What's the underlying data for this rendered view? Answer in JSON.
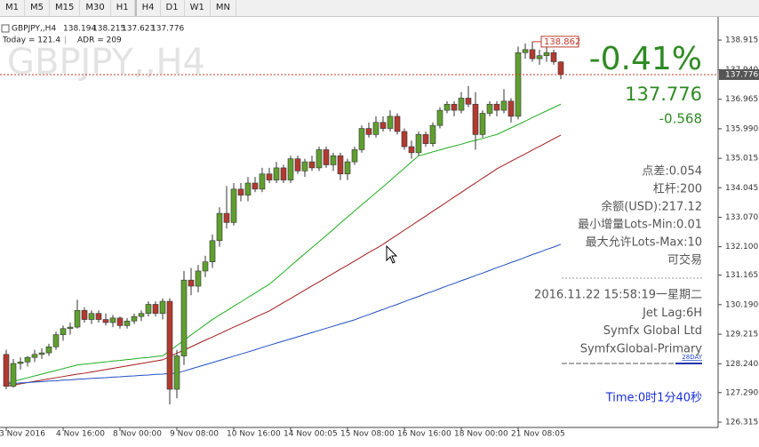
{
  "toolbar": {
    "buttons": [
      "M1",
      "M5",
      "M15",
      "M30",
      "H1",
      "H4",
      "D1",
      "W1",
      "MN"
    ]
  },
  "chart_data": {
    "type": "candlestick",
    "symbol": "GBPJPY,,H4",
    "today": "Today = 121.4",
    "adr": "ADR = 209",
    "up_color": "#5f9f2f",
    "down_color": "#b23a30",
    "ylim": [
      126.17,
      139.65
    ],
    "yticks": [
      138.915,
      {
        "value": 137.94,
        "label": "137.940"
      },
      136.965,
      {
        "value": 135.99,
        "label": "135.990"
      },
      135.015,
      134.045,
      {
        "value": 133.07,
        "label": "133.070"
      },
      {
        "value": 132.1,
        "label": "132.100"
      },
      131.165,
      {
        "value": 130.19,
        "label": "130.190"
      },
      129.215,
      {
        "value": 128.24,
        "label": "128.240"
      },
      {
        "value": 127.29,
        "label": "127.290"
      },
      126.315
    ],
    "categories": [
      "3 Nov 2016",
      null,
      null,
      null,
      null,
      null,
      null,
      null,
      "4 Nov 16:00",
      null,
      null,
      null,
      null,
      null,
      null,
      null,
      "8 Nov 00:00",
      null,
      null,
      null,
      null,
      null,
      null,
      null,
      "9 Nov 08:00",
      null,
      null,
      null,
      null,
      null,
      null,
      null,
      "10 Nov 16:00",
      null,
      null,
      null,
      null,
      null,
      null,
      null,
      "14 Nov 00:05",
      null,
      null,
      null,
      null,
      null,
      null,
      null,
      "15 Nov 08:00",
      null,
      null,
      null,
      null,
      null,
      null,
      null,
      "16 Nov 16:00",
      null,
      null,
      null,
      null,
      null,
      null,
      null,
      "18 Nov 00:00",
      null,
      null,
      null,
      null,
      null,
      null,
      null,
      "21 Nov 08:05",
      null,
      null,
      null,
      null,
      null,
      null
    ],
    "ohlc": [
      [
        128.55,
        128.7,
        127.4,
        127.5
      ],
      [
        127.5,
        128.4,
        127.45,
        128.25
      ],
      [
        128.25,
        128.45,
        128.05,
        128.3
      ],
      [
        128.3,
        128.5,
        128.15,
        128.45
      ],
      [
        128.45,
        128.7,
        128.3,
        128.55
      ],
      [
        128.55,
        128.75,
        128.4,
        128.6
      ],
      [
        128.6,
        128.9,
        128.5,
        128.8
      ],
      [
        128.8,
        129.3,
        128.7,
        129.2
      ],
      [
        129.2,
        129.5,
        129.0,
        129.4
      ],
      [
        129.4,
        129.6,
        129.2,
        129.45
      ],
      [
        129.45,
        130.35,
        129.4,
        130.0
      ],
      [
        130.0,
        130.1,
        129.6,
        129.7
      ],
      [
        129.7,
        130.0,
        129.55,
        129.9
      ],
      [
        129.9,
        130.0,
        129.6,
        129.7
      ],
      [
        129.7,
        129.9,
        129.5,
        129.6
      ],
      [
        129.6,
        129.85,
        129.45,
        129.75
      ],
      [
        129.75,
        129.8,
        129.4,
        129.5
      ],
      [
        129.5,
        129.75,
        129.4,
        129.65
      ],
      [
        129.65,
        129.9,
        129.55,
        129.8
      ],
      [
        129.8,
        130.0,
        129.65,
        129.9
      ],
      [
        129.9,
        130.3,
        129.8,
        130.2
      ],
      [
        130.2,
        130.3,
        129.8,
        129.9
      ],
      [
        129.9,
        130.4,
        129.7,
        130.3
      ],
      [
        130.3,
        130.4,
        126.9,
        127.4
      ],
      [
        127.4,
        128.7,
        127.1,
        128.5
      ],
      [
        128.5,
        131.3,
        128.2,
        131.0
      ],
      [
        131.0,
        131.4,
        130.5,
        130.8
      ],
      [
        130.8,
        131.5,
        130.6,
        131.3
      ],
      [
        131.3,
        131.8,
        131.1,
        131.6
      ],
      [
        131.6,
        132.5,
        131.4,
        132.3
      ],
      [
        132.3,
        133.4,
        132.1,
        133.2
      ],
      [
        133.2,
        134.1,
        132.7,
        132.9
      ],
      [
        132.9,
        134.2,
        132.8,
        134.0
      ],
      [
        134.0,
        134.2,
        133.6,
        133.8
      ],
      [
        133.8,
        134.4,
        133.6,
        134.2
      ],
      [
        134.2,
        134.4,
        133.9,
        134.0
      ],
      [
        134.0,
        134.7,
        133.9,
        134.5
      ],
      [
        134.5,
        134.7,
        134.2,
        134.3
      ],
      [
        134.3,
        134.9,
        134.2,
        134.7
      ],
      [
        134.7,
        134.8,
        134.2,
        134.3
      ],
      [
        134.3,
        135.1,
        134.2,
        135.0
      ],
      [
        135.0,
        135.1,
        134.5,
        134.6
      ],
      [
        134.6,
        135.0,
        134.4,
        134.9
      ],
      [
        134.9,
        135.1,
        134.6,
        134.7
      ],
      [
        134.7,
        135.4,
        134.6,
        135.3
      ],
      [
        135.3,
        135.4,
        134.7,
        134.8
      ],
      [
        134.8,
        135.2,
        134.6,
        135.1
      ],
      [
        135.1,
        135.2,
        134.3,
        134.5
      ],
      [
        134.5,
        135.0,
        134.3,
        134.9
      ],
      [
        134.9,
        135.4,
        134.8,
        135.3
      ],
      [
        135.3,
        136.1,
        135.2,
        136.0
      ],
      [
        136.0,
        136.2,
        135.7,
        135.8
      ],
      [
        135.8,
        136.4,
        135.7,
        136.2
      ],
      [
        136.2,
        136.4,
        135.9,
        136.0
      ],
      [
        136.0,
        136.6,
        135.9,
        136.4
      ],
      [
        136.4,
        136.5,
        135.8,
        135.9
      ],
      [
        135.9,
        136.0,
        135.3,
        135.4
      ],
      [
        135.4,
        135.6,
        135.0,
        135.2
      ],
      [
        135.2,
        135.9,
        135.1,
        135.8
      ],
      [
        135.8,
        135.9,
        135.4,
        135.5
      ],
      [
        135.5,
        136.2,
        135.4,
        136.1
      ],
      [
        136.1,
        136.7,
        136.0,
        136.6
      ],
      [
        136.6,
        136.9,
        136.5,
        136.8
      ],
      [
        136.8,
        136.9,
        136.4,
        136.6
      ],
      [
        136.6,
        137.2,
        136.5,
        137.0
      ],
      [
        137.0,
        137.4,
        136.7,
        136.8
      ],
      [
        136.8,
        137.2,
        135.3,
        135.8
      ],
      [
        135.8,
        136.6,
        135.7,
        136.5
      ],
      [
        136.5,
        136.9,
        136.4,
        136.8
      ],
      [
        136.8,
        136.9,
        136.4,
        136.6
      ],
      [
        136.6,
        137.3,
        136.5,
        136.9
      ],
      [
        136.9,
        137.0,
        136.2,
        136.4
      ],
      [
        136.4,
        138.7,
        136.3,
        138.5
      ],
      [
        138.5,
        138.8,
        138.3,
        138.6
      ],
      [
        138.6,
        138.862,
        138.2,
        138.3
      ],
      [
        138.3,
        138.6,
        138.1,
        138.4
      ],
      [
        138.4,
        138.7,
        138.2,
        138.5
      ],
      [
        138.5,
        138.6,
        138.1,
        138.2
      ],
      [
        138.194,
        138.215,
        137.623,
        137.776
      ]
    ],
    "series": [
      {
        "color": "#1fae1f",
        "values": [
          127.6,
          127.66,
          127.72,
          127.78,
          127.84,
          127.9,
          127.96,
          128.02,
          128.08,
          128.14,
          128.2,
          128.23,
          128.25,
          128.28,
          128.3,
          128.33,
          128.35,
          128.38,
          128.4,
          128.43,
          128.45,
          128.48,
          128.5,
          128.67,
          128.84,
          129.01,
          129.19,
          129.36,
          129.53,
          129.7,
          129.85,
          129.99,
          130.14,
          130.28,
          130.43,
          130.57,
          130.72,
          130.86,
          131.06,
          131.26,
          131.47,
          131.67,
          131.87,
          132.07,
          132.27,
          132.47,
          132.67,
          132.88,
          133.08,
          133.28,
          133.48,
          133.68,
          133.88,
          134.08,
          134.28,
          134.49,
          134.69,
          134.9,
          135.1,
          135.16,
          135.23,
          135.29,
          135.36,
          135.42,
          135.48,
          135.55,
          135.61,
          135.67,
          135.74,
          135.8,
          135.91,
          136.02,
          136.13,
          136.24,
          136.36,
          136.47,
          136.58,
          136.69,
          136.8
        ]
      },
      {
        "color": "#a31b1b",
        "values": [
          127.5,
          127.54,
          127.58,
          127.62,
          127.66,
          127.7,
          127.74,
          127.78,
          127.82,
          127.86,
          127.9,
          127.93,
          127.97,
          128.01,
          128.05,
          128.09,
          128.13,
          128.17,
          128.21,
          128.25,
          128.29,
          128.33,
          128.37,
          128.48,
          128.59,
          128.69,
          128.8,
          128.91,
          129.02,
          129.12,
          129.23,
          129.34,
          129.45,
          129.55,
          129.66,
          129.77,
          129.88,
          129.98,
          130.12,
          130.26,
          130.39,
          130.53,
          130.67,
          130.81,
          130.94,
          131.08,
          131.22,
          131.36,
          131.49,
          131.63,
          131.77,
          131.91,
          132.04,
          132.18,
          132.34,
          132.49,
          132.65,
          132.8,
          132.96,
          133.11,
          133.27,
          133.42,
          133.58,
          133.74,
          133.89,
          134.05,
          134.2,
          134.36,
          134.51,
          134.67,
          134.79,
          134.92,
          135.04,
          135.16,
          135.29,
          135.41,
          135.53,
          135.66,
          135.78
        ]
      },
      {
        "color": "#1f4fc4",
        "values": [
          127.58,
          127.59,
          127.61,
          127.62,
          127.64,
          127.65,
          127.67,
          127.68,
          127.7,
          127.71,
          127.73,
          127.74,
          127.76,
          127.77,
          127.78,
          127.8,
          127.81,
          127.83,
          127.84,
          127.86,
          127.87,
          127.89,
          127.9,
          127.92,
          127.93,
          128.0,
          128.07,
          128.14,
          128.21,
          128.28,
          128.35,
          128.42,
          128.49,
          128.56,
          128.63,
          128.7,
          128.78,
          128.85,
          128.92,
          128.99,
          129.06,
          129.13,
          129.2,
          129.27,
          129.34,
          129.41,
          129.48,
          129.55,
          129.62,
          129.69,
          129.78,
          129.86,
          129.95,
          130.03,
          130.12,
          130.2,
          130.29,
          130.38,
          130.46,
          130.55,
          130.63,
          130.72,
          130.81,
          130.89,
          130.98,
          131.06,
          131.15,
          131.23,
          131.32,
          131.41,
          131.49,
          131.58,
          131.66,
          131.75,
          131.84,
          131.92,
          132.01,
          132.09,
          132.18
        ]
      }
    ]
  },
  "panel": {
    "change_percent": "-0.41%",
    "change_points": "-0.568",
    "info": [
      "点差:0.054",
      "杠杆:200",
      "余额(USD):217.12",
      "最小增量Lots-Min:0.01",
      "最大允许Lots-Max:10",
      "可交易"
    ],
    "account": [
      "2016.11.22 15:58:19一星期二",
      "Jet Lag:6H",
      "Symfx Global Ltd",
      "SymfxGlobal-Primary"
    ],
    "days": "28DAY",
    "timer": "Time:0时1分40秒"
  }
}
